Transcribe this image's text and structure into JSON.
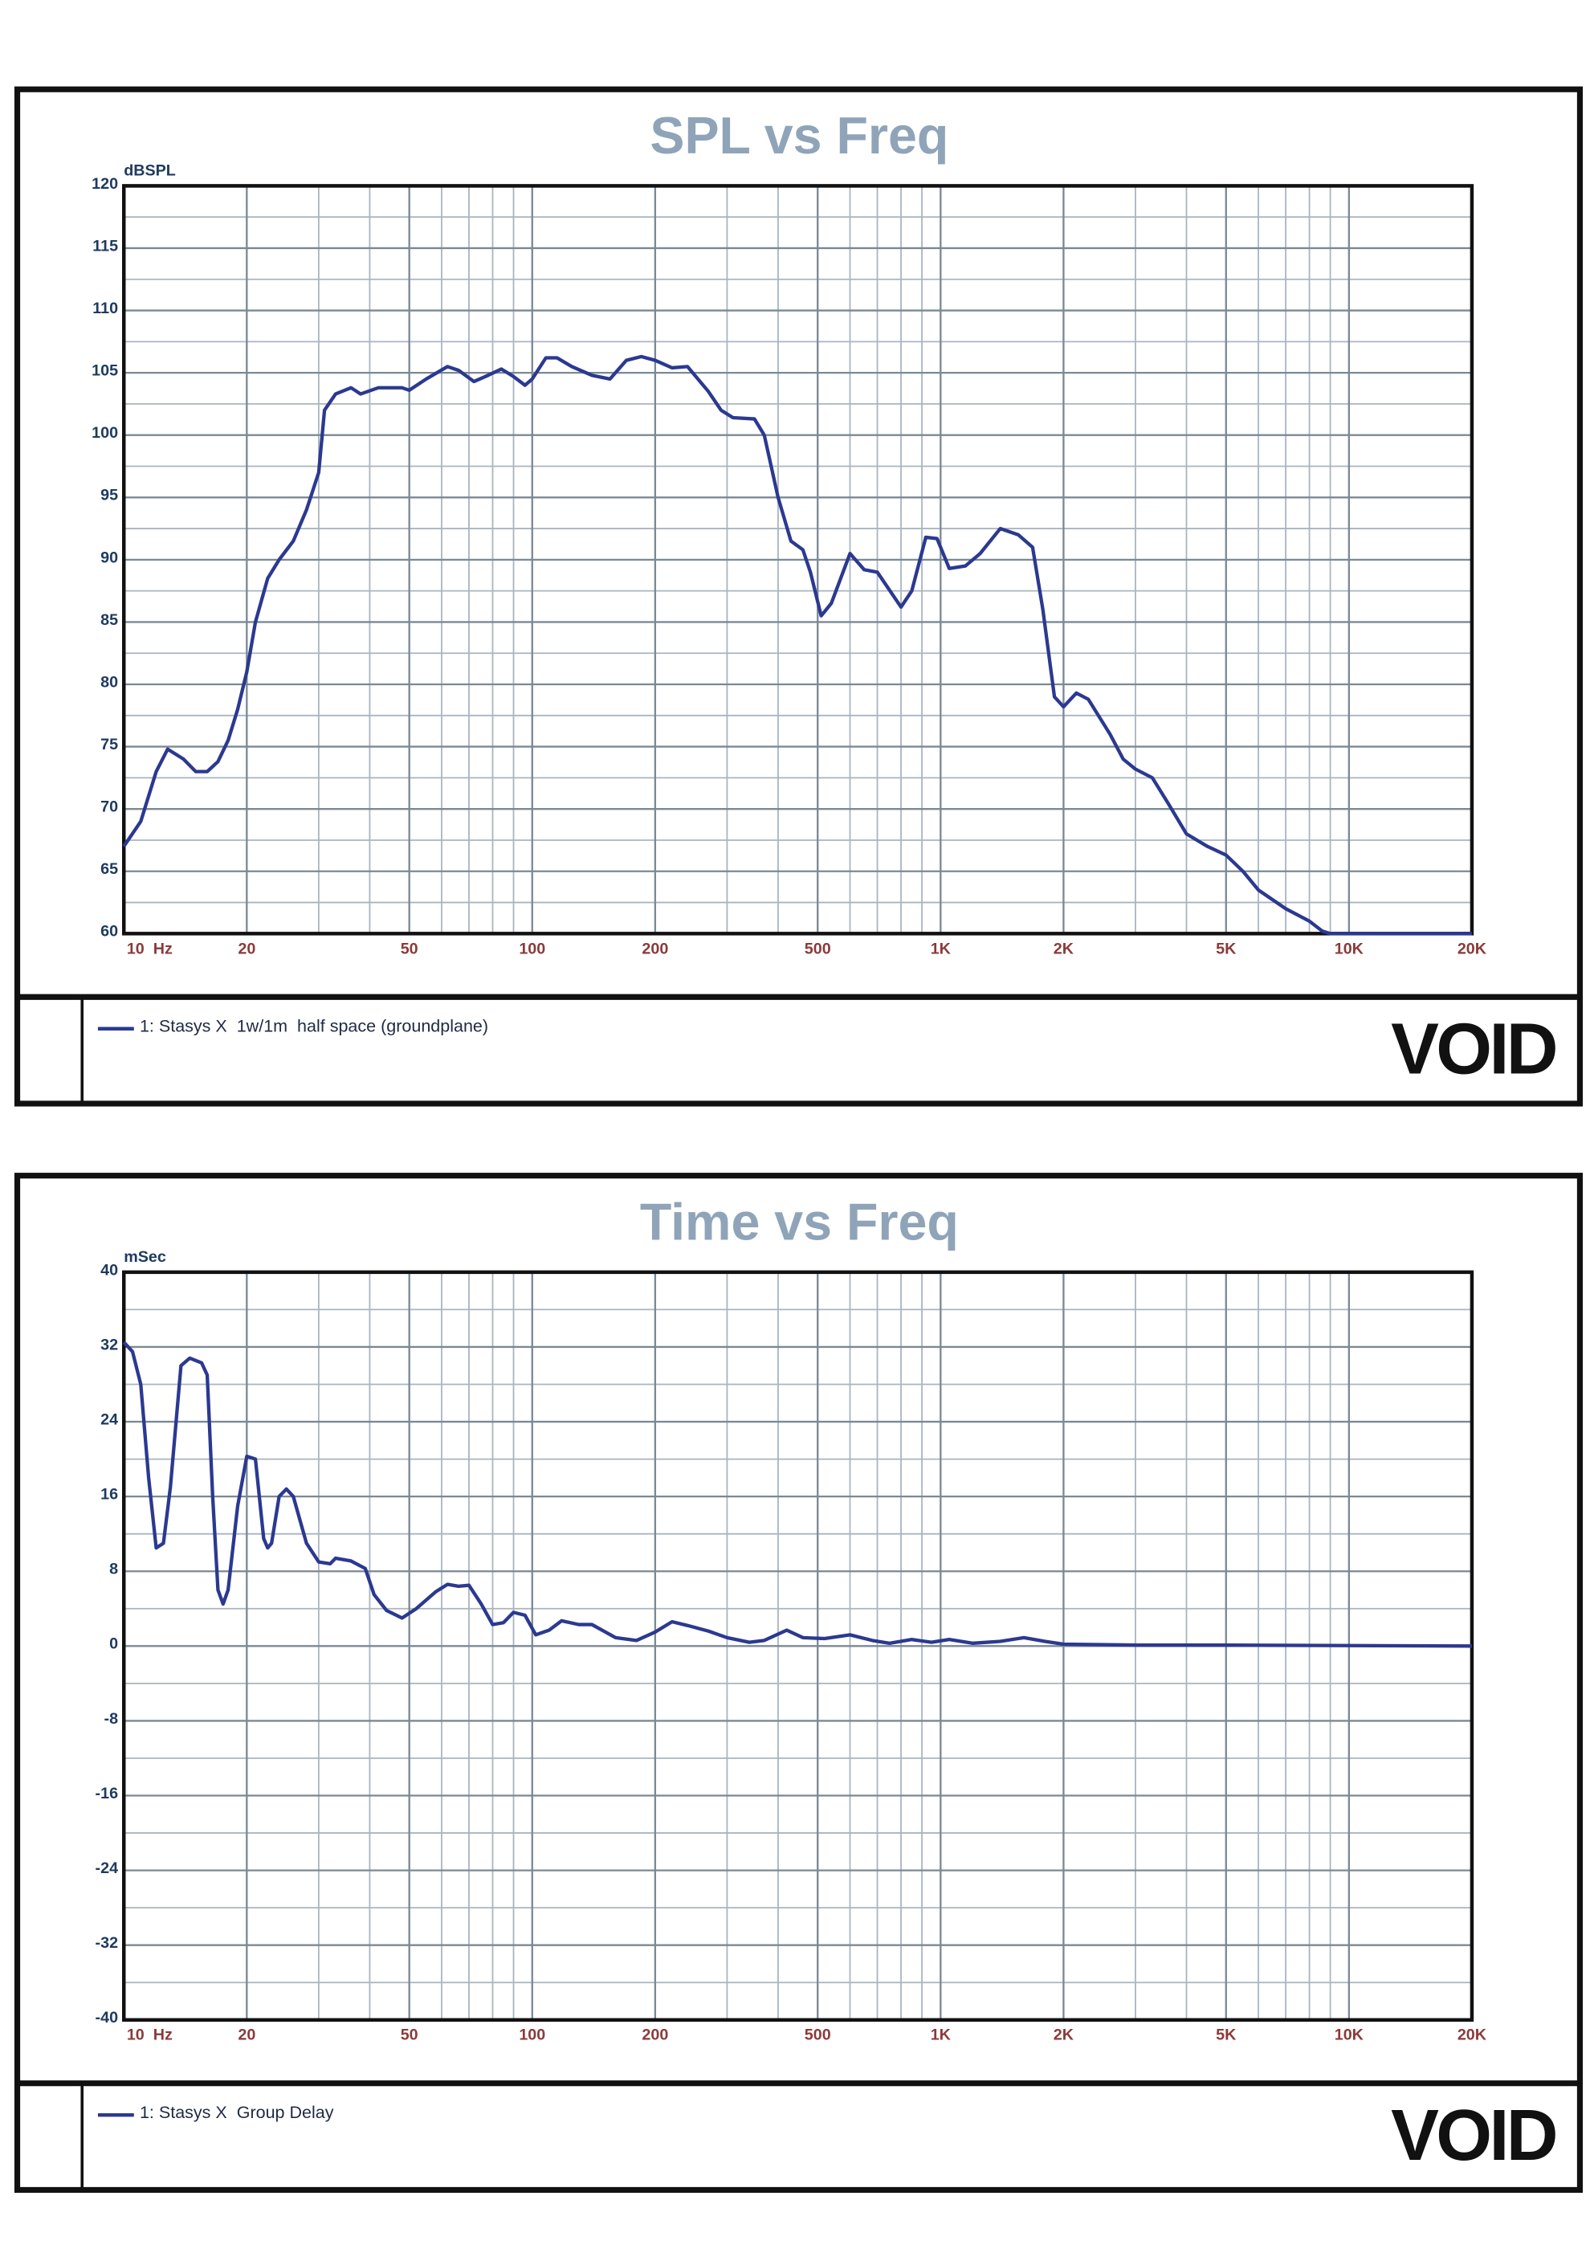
{
  "chart_data": [
    {
      "type": "line",
      "title": "SPL vs Freq",
      "y_label": "dBSPL",
      "logo": "VOID",
      "log_x": true,
      "grid": true,
      "legend": "bottom-left",
      "xlim": [
        10,
        20000
      ],
      "ylim": [
        60,
        120
      ],
      "xticks": [
        {
          "value": 10,
          "label": "10  Hz"
        },
        20,
        50,
        100,
        200,
        500,
        {
          "value": 1000,
          "label": "1K"
        },
        {
          "value": 2000,
          "label": "2K"
        },
        {
          "value": 5000,
          "label": "5K"
        },
        {
          "value": 10000,
          "label": "10K"
        },
        {
          "value": 20000,
          "label": "20K"
        }
      ],
      "x_minor_ticks": [
        30,
        40,
        60,
        70,
        80,
        90,
        300,
        400,
        600,
        700,
        800,
        900,
        3000,
        4000,
        6000,
        7000,
        8000,
        9000
      ],
      "yticks": [
        60,
        65,
        70,
        75,
        80,
        85,
        90,
        95,
        100,
        105,
        110,
        115,
        120
      ],
      "y_minor_ticks": [
        62.5,
        67.5,
        72.5,
        77.5,
        82.5,
        87.5,
        92.5,
        97.5,
        102.5,
        107.5,
        112.5,
        117.5
      ],
      "x": [
        10,
        11,
        12,
        12.8,
        14,
        15,
        16,
        17,
        18,
        19,
        20,
        21,
        22.5,
        24,
        26,
        28,
        30,
        31,
        33,
        36,
        38,
        42,
        48,
        50,
        55,
        62,
        66,
        72,
        78,
        84,
        90,
        96,
        100,
        108,
        115,
        125,
        140,
        155,
        170,
        185,
        200,
        220,
        240,
        270,
        290,
        310,
        350,
        370,
        400,
        430,
        460,
        480,
        510,
        540,
        600,
        650,
        700,
        800,
        850,
        920,
        980,
        1050,
        1150,
        1250,
        1400,
        1550,
        1680,
        1780,
        1900,
        2000,
        2150,
        2300,
        2600,
        2800,
        3000,
        3300,
        3600,
        4000,
        4500,
        5000,
        5500,
        6000,
        7000,
        8000,
        8600,
        9000,
        20000
      ],
      "series": [
        {
          "name": "1: Stasys X  1w/1m  half space (groundplane)",
          "color": "#2b3990",
          "values": [
            67,
            69,
            73,
            74.8,
            74,
            73,
            73,
            73.8,
            75.5,
            78,
            81,
            85,
            88.5,
            90,
            91.5,
            94,
            97,
            102,
            103.3,
            103.8,
            103.3,
            103.8,
            103.8,
            103.6,
            104.5,
            105.5,
            105.2,
            104.3,
            104.8,
            105.3,
            104.7,
            104,
            104.5,
            106.2,
            106.2,
            105.5,
            104.8,
            104.5,
            106,
            106.3,
            106,
            105.4,
            105.5,
            103.5,
            102,
            101.4,
            101.3,
            100,
            95,
            91.5,
            90.8,
            89,
            85.5,
            86.5,
            90.5,
            89.2,
            89,
            86.2,
            87.5,
            91.8,
            91.7,
            89.3,
            89.5,
            90.5,
            92.5,
            92,
            91,
            86,
            79,
            78.2,
            79.3,
            78.8,
            76,
            74,
            73.2,
            72.5,
            70.5,
            68,
            67,
            66.3,
            65,
            63.5,
            62,
            61,
            60.2,
            60,
            60
          ]
        }
      ]
    },
    {
      "type": "line",
      "title": "Time vs Freq",
      "y_label": "mSec",
      "logo": "VOID",
      "log_x": true,
      "grid": true,
      "legend": "bottom-left",
      "xlim": [
        10,
        20000
      ],
      "ylim": [
        -40,
        40
      ],
      "xticks": [
        {
          "value": 10,
          "label": "10  Hz"
        },
        20,
        50,
        100,
        200,
        500,
        {
          "value": 1000,
          "label": "1K"
        },
        {
          "value": 2000,
          "label": "2K"
        },
        {
          "value": 5000,
          "label": "5K"
        },
        {
          "value": 10000,
          "label": "10K"
        },
        {
          "value": 20000,
          "label": "20K"
        }
      ],
      "x_minor_ticks": [
        30,
        40,
        60,
        70,
        80,
        90,
        300,
        400,
        600,
        700,
        800,
        900,
        3000,
        4000,
        6000,
        7000,
        8000,
        9000
      ],
      "yticks": [
        -40,
        -32,
        -24,
        -16,
        -8,
        0,
        8,
        16,
        24,
        32,
        40
      ],
      "y_minor_ticks": [
        -36,
        -28,
        -20,
        -12,
        -4,
        4,
        12,
        20,
        28,
        36
      ],
      "x": [
        10,
        10.5,
        11,
        11.5,
        12,
        12.5,
        13,
        13.8,
        14.5,
        15.5,
        16,
        16.5,
        17,
        17.5,
        18,
        19,
        20,
        21,
        22,
        22.5,
        23,
        24,
        25,
        26,
        28,
        30,
        32,
        33,
        36,
        39,
        41,
        44,
        48,
        52,
        58,
        62,
        66,
        70,
        75,
        80,
        85,
        90,
        96,
        102,
        110,
        118,
        130,
        140,
        160,
        180,
        200,
        220,
        240,
        270,
        300,
        340,
        370,
        420,
        460,
        520,
        600,
        680,
        750,
        850,
        950,
        1050,
        1200,
        1400,
        1600,
        1800,
        2000,
        3000,
        5000,
        20000
      ],
      "series": [
        {
          "name": "1: Stasys X  Group Delay",
          "color": "#2b3990",
          "values": [
            32.5,
            31.5,
            28,
            18,
            10.5,
            11,
            17,
            30,
            30.8,
            30.3,
            29,
            16,
            6,
            4.5,
            6,
            15,
            20.3,
            20,
            11.5,
            10.5,
            11,
            16,
            16.8,
            16,
            11,
            9,
            8.8,
            9.4,
            9.1,
            8.3,
            5.5,
            3.8,
            3,
            4,
            5.8,
            6.6,
            6.4,
            6.5,
            4.5,
            2.3,
            2.5,
            3.6,
            3.3,
            1.2,
            1.7,
            2.7,
            2.3,
            2.3,
            0.9,
            0.6,
            1.5,
            2.6,
            2.2,
            1.6,
            0.9,
            0.4,
            0.6,
            1.7,
            0.9,
            0.8,
            1.2,
            0.6,
            0.3,
            0.7,
            0.4,
            0.7,
            0.3,
            0.5,
            0.9,
            0.5,
            0.2,
            0.1,
            0.1,
            0
          ]
        }
      ]
    }
  ]
}
